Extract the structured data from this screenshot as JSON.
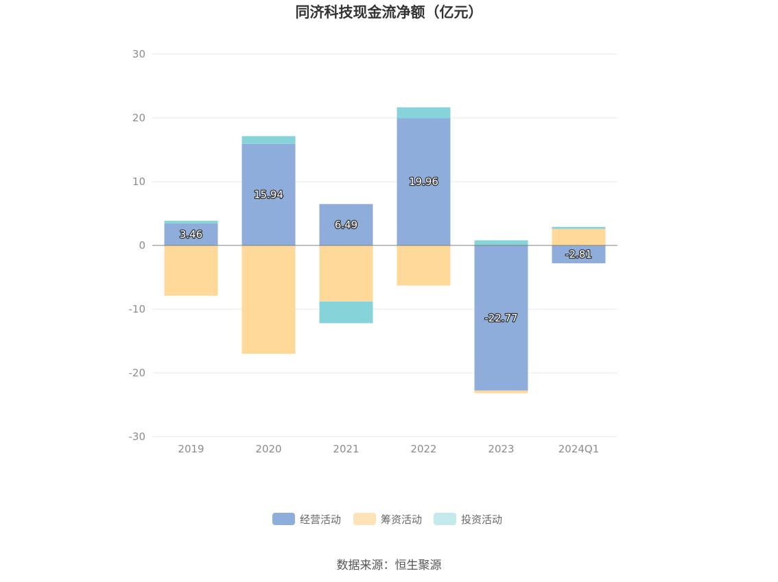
{
  "chart_data": {
    "type": "bar",
    "stacked": true,
    "title": "同济科技现金流净额（亿元）",
    "categories": [
      "2019",
      "2020",
      "2021",
      "2022",
      "2023",
      "2024Q1"
    ],
    "series": [
      {
        "name": "经营活动",
        "color": "#8eaddb",
        "values": [
          3.46,
          15.94,
          6.49,
          19.96,
          -22.77,
          -2.81
        ],
        "labels": [
          "3.46",
          "15.94",
          "6.49",
          "19.96",
          "-22.77",
          "-2.81"
        ]
      },
      {
        "name": "筹资活动",
        "color": "#ffd99a",
        "values": [
          -7.9,
          -17.0,
          -8.8,
          -6.3,
          -0.4,
          2.6
        ]
      },
      {
        "name": "投资活动",
        "color": "#86d3d9",
        "values": [
          0.4,
          1.2,
          -3.4,
          1.7,
          0.8,
          0.3
        ]
      }
    ],
    "ylim": [
      -30,
      30
    ],
    "yticks": [
      30,
      20,
      10,
      0,
      -10,
      -20,
      -30
    ],
    "grid": true,
    "legend_position": "bottom"
  },
  "legend": [
    {
      "label": "经营活动",
      "color": "#8eaddb"
    },
    {
      "label": "筹资活动",
      "color": "#ffe3b8"
    },
    {
      "label": "投资活动",
      "color": "#c3e9ec"
    }
  ],
  "source": "数据来源：恒生聚源"
}
